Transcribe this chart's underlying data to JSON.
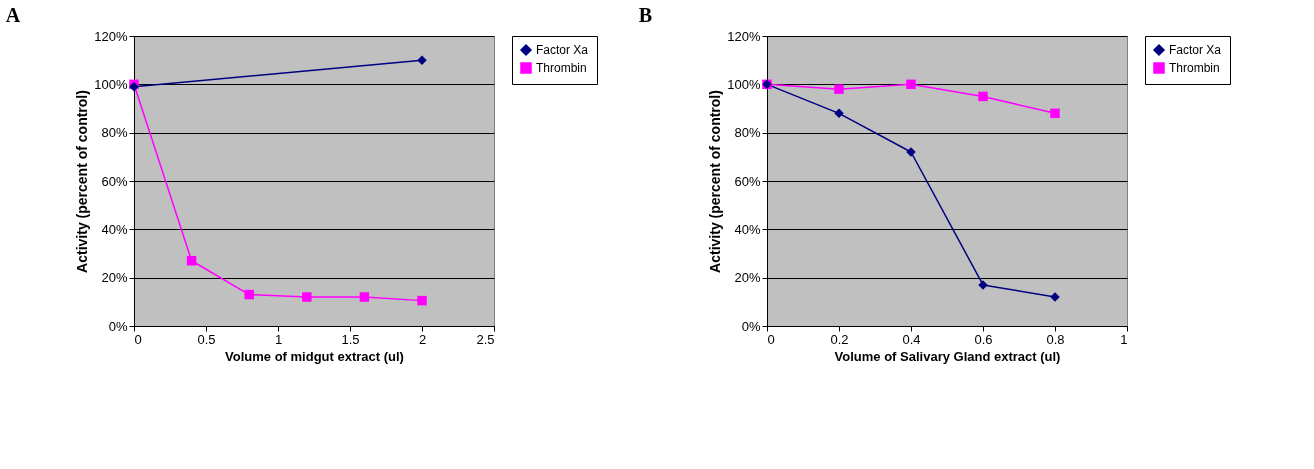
{
  "chart_data": [
    {
      "type": "line",
      "title": "A",
      "xlabel": "Volume of midgut extract (ul)",
      "ylabel": "Activity (percent of control)",
      "xlim": [
        0,
        2.5
      ],
      "xticks": [
        0,
        0.5,
        1,
        1.5,
        2,
        2.5
      ],
      "ylim": [
        0,
        120
      ],
      "yticks": [
        {
          "value": 0,
          "label": "0%"
        },
        {
          "value": 20,
          "label": "20%"
        },
        {
          "value": 40,
          "label": "40%"
        },
        {
          "value": 60,
          "label": "60%"
        },
        {
          "value": 80,
          "label": "80%"
        },
        {
          "value": 100,
          "label": "100%"
        },
        {
          "value": 120,
          "label": "120%"
        }
      ],
      "grid": "y",
      "legend": "right",
      "line_style": "solid",
      "series": [
        {
          "name": "Factor Xa",
          "color": "#000080",
          "marker": "diamond",
          "x": [
            0,
            2
          ],
          "values": [
            99,
            110
          ]
        },
        {
          "name": "Thrombin",
          "color": "#ff00ff",
          "marker": "square",
          "x": [
            0,
            0.4,
            0.8,
            1.2,
            1.6,
            2
          ],
          "values": [
            100,
            27,
            13,
            12,
            12,
            10.5
          ]
        }
      ]
    },
    {
      "type": "line",
      "title": "B",
      "xlabel": "Volume of Salivary Gland extract (ul)",
      "ylabel": "Activity (percent of control)",
      "xlim": [
        0,
        1
      ],
      "xticks": [
        0,
        0.2,
        0.4,
        0.6,
        0.8,
        1
      ],
      "ylim": [
        0,
        120
      ],
      "yticks": [
        {
          "value": 0,
          "label": "0%"
        },
        {
          "value": 20,
          "label": "20%"
        },
        {
          "value": 40,
          "label": "40%"
        },
        {
          "value": 60,
          "label": "60%"
        },
        {
          "value": 80,
          "label": "80%"
        },
        {
          "value": 100,
          "label": "100%"
        },
        {
          "value": 120,
          "label": "120%"
        }
      ],
      "grid": "y",
      "legend": "right",
      "line_style": "solid",
      "series": [
        {
          "name": "Factor Xa",
          "color": "#000080",
          "marker": "diamond",
          "x": [
            0,
            0.2,
            0.4,
            0.6,
            0.8
          ],
          "values": [
            100,
            88,
            72,
            17,
            12
          ]
        },
        {
          "name": "Thrombin",
          "color": "#ff00ff",
          "marker": "square",
          "x": [
            0,
            0.2,
            0.4,
            0.6,
            0.8
          ],
          "values": [
            100,
            98,
            100,
            95,
            88
          ]
        }
      ]
    }
  ]
}
